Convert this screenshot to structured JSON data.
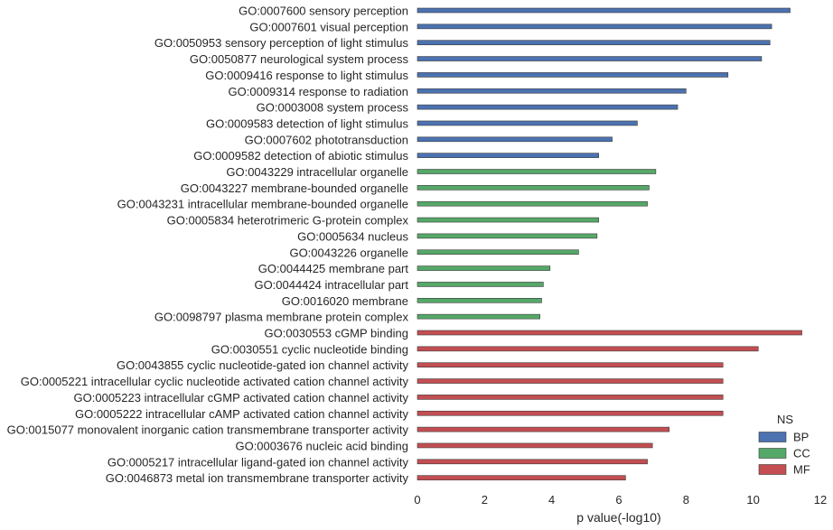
{
  "chart_data": {
    "type": "bar",
    "orientation": "horizontal",
    "xlabel": "p value(-log10)",
    "xlim": [
      0,
      12
    ],
    "xticks": [
      0,
      2,
      4,
      6,
      8,
      10,
      12
    ],
    "grid": false,
    "legend": {
      "title": "NS",
      "placement": "lower-right",
      "entries": [
        {
          "name": "BP",
          "color": "#4c72b0"
        },
        {
          "name": "CC",
          "color": "#55a868"
        },
        {
          "name": "MF",
          "color": "#c44e52"
        }
      ]
    },
    "bars": [
      {
        "label": "GO:0007600 sensory perception",
        "value": 11.1,
        "ns": "BP"
      },
      {
        "label": "GO:0007601 visual perception",
        "value": 10.55,
        "ns": "BP"
      },
      {
        "label": "GO:0050953 sensory perception of light stimulus",
        "value": 10.5,
        "ns": "BP"
      },
      {
        "label": "GO:0050877 neurological system process",
        "value": 10.25,
        "ns": "BP"
      },
      {
        "label": "GO:0009416 response to light stimulus",
        "value": 9.25,
        "ns": "BP"
      },
      {
        "label": "GO:0009314 response to radiation",
        "value": 8.0,
        "ns": "BP"
      },
      {
        "label": "GO:0003008 system process",
        "value": 7.75,
        "ns": "BP"
      },
      {
        "label": "GO:0009583 detection of light stimulus",
        "value": 6.55,
        "ns": "BP"
      },
      {
        "label": "GO:0007602 phototransduction",
        "value": 5.8,
        "ns": "BP"
      },
      {
        "label": "GO:0009582 detection of abiotic stimulus",
        "value": 5.4,
        "ns": "BP"
      },
      {
        "label": "GO:0043229 intracellular organelle",
        "value": 7.1,
        "ns": "CC"
      },
      {
        "label": "GO:0043227 membrane-bounded organelle",
        "value": 6.9,
        "ns": "CC"
      },
      {
        "label": "GO:0043231 intracellular membrane-bounded organelle",
        "value": 6.85,
        "ns": "CC"
      },
      {
        "label": "GO:0005834 heterotrimeric G-protein complex",
        "value": 5.4,
        "ns": "CC"
      },
      {
        "label": "GO:0005634 nucleus",
        "value": 5.35,
        "ns": "CC"
      },
      {
        "label": "GO:0043226 organelle",
        "value": 4.8,
        "ns": "CC"
      },
      {
        "label": "GO:0044425 membrane part",
        "value": 3.95,
        "ns": "CC"
      },
      {
        "label": "GO:0044424 intracellular part",
        "value": 3.75,
        "ns": "CC"
      },
      {
        "label": "GO:0016020 membrane",
        "value": 3.7,
        "ns": "CC"
      },
      {
        "label": "GO:0098797 plasma membrane protein complex",
        "value": 3.65,
        "ns": "CC"
      },
      {
        "label": "GO:0030553 cGMP binding",
        "value": 11.45,
        "ns": "MF"
      },
      {
        "label": "GO:0030551 cyclic nucleotide binding",
        "value": 10.15,
        "ns": "MF"
      },
      {
        "label": "GO:0043855 cyclic nucleotide-gated ion channel activity",
        "value": 9.1,
        "ns": "MF"
      },
      {
        "label": "GO:0005221 intracellular cyclic nucleotide activated cation channel activity",
        "value": 9.1,
        "ns": "MF"
      },
      {
        "label": "GO:0005223 intracellular cGMP activated cation channel activity",
        "value": 9.1,
        "ns": "MF"
      },
      {
        "label": "GO:0005222 intracellular cAMP activated cation channel activity",
        "value": 9.1,
        "ns": "MF"
      },
      {
        "label": "GO:0015077 monovalent inorganic cation transmembrane transporter activity",
        "value": 7.5,
        "ns": "MF"
      },
      {
        "label": "GO:0003676 nucleic acid binding",
        "value": 7.0,
        "ns": "MF"
      },
      {
        "label": "GO:0005217 intracellular ligand-gated ion channel activity",
        "value": 6.85,
        "ns": "MF"
      },
      {
        "label": "GO:0046873 metal ion transmembrane transporter activity",
        "value": 6.2,
        "ns": "MF"
      }
    ]
  }
}
